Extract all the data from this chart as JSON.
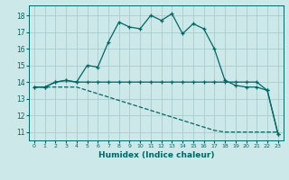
{
  "title": "",
  "xlabel": "Humidex (Indice chaleur)",
  "ylabel": "",
  "xlim": [
    -0.5,
    23.5
  ],
  "ylim": [
    10.5,
    18.6
  ],
  "yticks": [
    11,
    12,
    13,
    14,
    15,
    16,
    17,
    18
  ],
  "xticks": [
    0,
    1,
    2,
    3,
    4,
    5,
    6,
    7,
    8,
    9,
    10,
    11,
    12,
    13,
    14,
    15,
    16,
    17,
    18,
    19,
    20,
    21,
    22,
    23
  ],
  "bg_color": "#cce8e8",
  "grid_color": "#aacccc",
  "line_color": "#006666",
  "line1_x": [
    0,
    1,
    2,
    3,
    4,
    5,
    6,
    7,
    8,
    9,
    10,
    11,
    12,
    13,
    14,
    15,
    16,
    17,
    18,
    19,
    20,
    21,
    22,
    23
  ],
  "line1_y": [
    13.7,
    13.7,
    14.0,
    14.1,
    14.0,
    15.0,
    14.9,
    16.4,
    17.6,
    17.3,
    17.2,
    18.0,
    17.7,
    18.1,
    16.9,
    17.5,
    17.2,
    16.0,
    14.1,
    13.8,
    13.7,
    13.7,
    13.5,
    10.9
  ],
  "line2_x": [
    0,
    1,
    2,
    3,
    4,
    5,
    6,
    7,
    8,
    9,
    10,
    11,
    12,
    13,
    14,
    15,
    16,
    17,
    18,
    19,
    20,
    21,
    22,
    23
  ],
  "line2_y": [
    13.7,
    13.7,
    14.0,
    14.1,
    14.0,
    14.0,
    14.0,
    14.0,
    14.0,
    14.0,
    14.0,
    14.0,
    14.0,
    14.0,
    14.0,
    14.0,
    14.0,
    14.0,
    14.0,
    14.0,
    14.0,
    14.0,
    13.5,
    10.9
  ],
  "line3_x": [
    0,
    1,
    2,
    3,
    4,
    5,
    6,
    7,
    8,
    9,
    10,
    11,
    12,
    13,
    14,
    15,
    16,
    17,
    18,
    19,
    20,
    21,
    22,
    23
  ],
  "line3_y": [
    13.7,
    13.7,
    13.7,
    13.7,
    13.7,
    13.5,
    13.3,
    13.1,
    12.9,
    12.7,
    12.5,
    12.3,
    12.1,
    11.9,
    11.7,
    11.5,
    11.3,
    11.1,
    11.0,
    11.0,
    11.0,
    11.0,
    11.0,
    11.0
  ]
}
